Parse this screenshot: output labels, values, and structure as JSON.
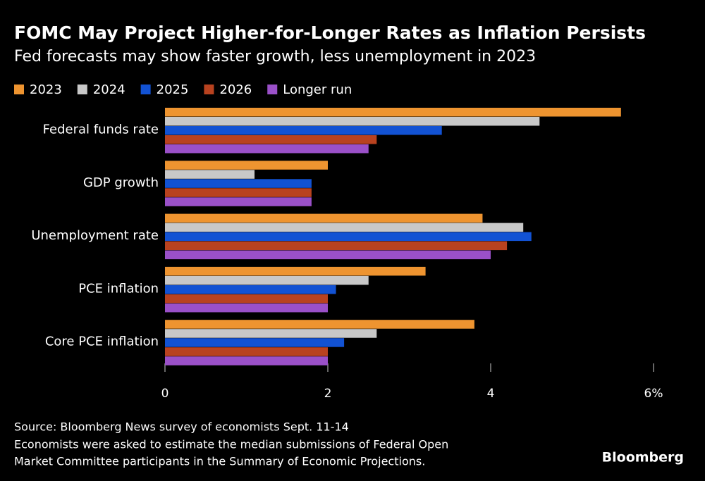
{
  "chart_data": {
    "type": "hbar",
    "title": "FOMC May Project Higher-for-Longer Rates as Inflation Persists",
    "subtitle": "Fed forecasts may show faster growth, less unemployment in 2023",
    "categories": [
      "Federal funds rate",
      "GDP growth",
      "Unemployment rate",
      "PCE inflation",
      "Core PCE inflation"
    ],
    "series": [
      {
        "name": "2023",
        "color": "#ee9430",
        "values": [
          5.6,
          2.0,
          3.9,
          3.2,
          3.8
        ]
      },
      {
        "name": "2024",
        "color": "#c8c8c8",
        "values": [
          4.6,
          1.1,
          4.4,
          2.5,
          2.6
        ]
      },
      {
        "name": "2025",
        "color": "#1252d3",
        "values": [
          3.4,
          1.8,
          4.5,
          2.1,
          2.2
        ]
      },
      {
        "name": "2026",
        "color": "#b8421f",
        "values": [
          2.6,
          1.8,
          4.2,
          2.0,
          2.0
        ]
      },
      {
        "name": "Longer run",
        "color": "#9a50c8",
        "values": [
          2.5,
          1.8,
          4.0,
          2.0,
          2.0
        ]
      }
    ],
    "xlim": [
      0,
      6
    ],
    "xticks": [
      0,
      2,
      4,
      {
        "value": 6,
        "label": "6%"
      }
    ],
    "source": "Source: Bloomberg News survey of economists Sept. 11-14",
    "note": [
      "Economists were asked to estimate the median submissions of Federal Open",
      "Market Committee participants in the Summary of Economic Projections."
    ],
    "brand": "Bloomberg"
  }
}
